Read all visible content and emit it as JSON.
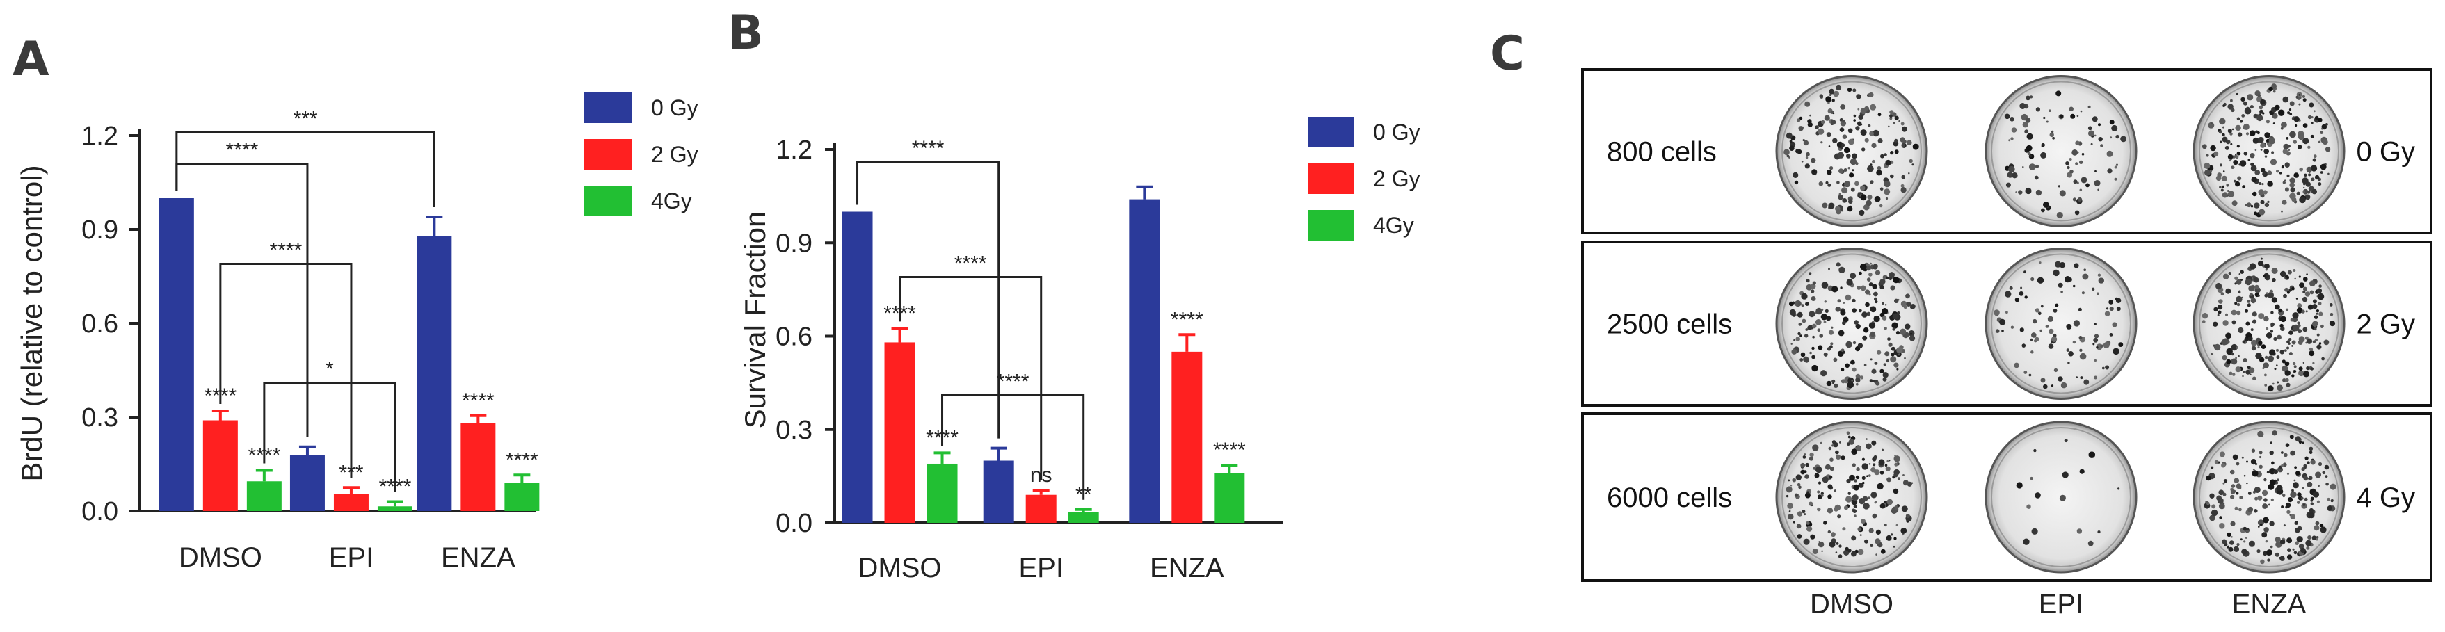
{
  "colors": {
    "blue": "#2b3a9a",
    "red": "#ff2020",
    "green": "#22bf33",
    "axis": "#222222",
    "frame": "#111111"
  },
  "panels": {
    "a": "A",
    "b": "B",
    "c": "C"
  },
  "chart_data": [
    {
      "id": "A",
      "type": "bar",
      "ylabel": "BrdU (relative to control)",
      "xlabel": "",
      "ylim": [
        0,
        1.2
      ],
      "yticks": [
        "0.0",
        "0.3",
        "0.6",
        "0.9",
        "1.2"
      ],
      "categories": [
        "DMSO",
        "EPI",
        "ENZA"
      ],
      "legend_position": "top-right",
      "series": [
        {
          "name": "0 Gy",
          "color": "#2b3a9a",
          "values": [
            1.0,
            0.18,
            0.88
          ],
          "errors": [
            0,
            0.025,
            0.06
          ],
          "stars": [
            "",
            "",
            ""
          ]
        },
        {
          "name": "2 Gy",
          "color": "#ff2020",
          "values": [
            0.29,
            0.055,
            0.28
          ],
          "errors": [
            0.03,
            0.02,
            0.025
          ],
          "stars": [
            "****",
            "***",
            "****"
          ]
        },
        {
          "name": "4Gy",
          "color": "#22bf33",
          "values": [
            0.095,
            0.015,
            0.09
          ],
          "errors": [
            0.035,
            0.015,
            0.025
          ],
          "stars": [
            "****",
            "****",
            "****"
          ]
        }
      ],
      "comparisons": [
        {
          "label": "***",
          "from": [
            0,
            0
          ],
          "to": [
            2,
            0
          ],
          "y": 1.21
        },
        {
          "label": "****",
          "from": [
            0,
            0
          ],
          "to": [
            1,
            0
          ],
          "y": 1.11
        },
        {
          "label": "****",
          "from": [
            0,
            1
          ],
          "to": [
            1,
            1
          ],
          "y": 0.79
        },
        {
          "label": "*",
          "from": [
            0,
            2
          ],
          "to": [
            1,
            2
          ],
          "y": 0.41
        }
      ]
    },
    {
      "id": "B",
      "type": "bar",
      "ylabel": "Survival Fraction",
      "xlabel": "",
      "ylim": [
        0,
        1.2
      ],
      "yticks": [
        "0.0",
        "0.3",
        "0.6",
        "0.9",
        "1.2"
      ],
      "categories": [
        "DMSO",
        "EPI",
        "ENZA"
      ],
      "legend_position": "top-right",
      "series": [
        {
          "name": "0 Gy",
          "color": "#2b3a9a",
          "values": [
            1.0,
            0.2,
            1.04
          ],
          "errors": [
            0,
            0.04,
            0.04
          ],
          "stars": [
            "",
            "",
            ""
          ]
        },
        {
          "name": "2 Gy",
          "color": "#ff2020",
          "values": [
            0.58,
            0.09,
            0.55
          ],
          "errors": [
            0.045,
            0.015,
            0.055
          ],
          "stars": [
            "****",
            "ns",
            "****"
          ]
        },
        {
          "name": "4Gy",
          "color": "#22bf33",
          "values": [
            0.19,
            0.035,
            0.16
          ],
          "errors": [
            0.035,
            0.008,
            0.025
          ],
          "stars": [
            "****",
            "**",
            "****"
          ]
        }
      ],
      "comparisons": [
        {
          "label": "****",
          "from": [
            0,
            0
          ],
          "to": [
            1,
            0
          ],
          "y": 1.16
        },
        {
          "label": "****",
          "from": [
            0,
            1
          ],
          "to": [
            1,
            1
          ],
          "y": 0.79
        },
        {
          "label": "****",
          "from": [
            0,
            2
          ],
          "to": [
            1,
            2
          ],
          "y": 0.41
        }
      ]
    }
  ],
  "panel_c": {
    "rows": [
      {
        "cells": "800 cells",
        "dose": "0 Gy"
      },
      {
        "cells": "2500 cells",
        "dose": "2 Gy"
      },
      {
        "cells": "6000 cells",
        "dose": "4 Gy"
      }
    ],
    "columns": [
      "DMSO",
      "EPI",
      "ENZA"
    ],
    "density": [
      [
        0.75,
        0.4,
        0.95
      ],
      [
        0.85,
        0.4,
        1.0
      ],
      [
        0.8,
        0.06,
        0.9
      ]
    ]
  }
}
